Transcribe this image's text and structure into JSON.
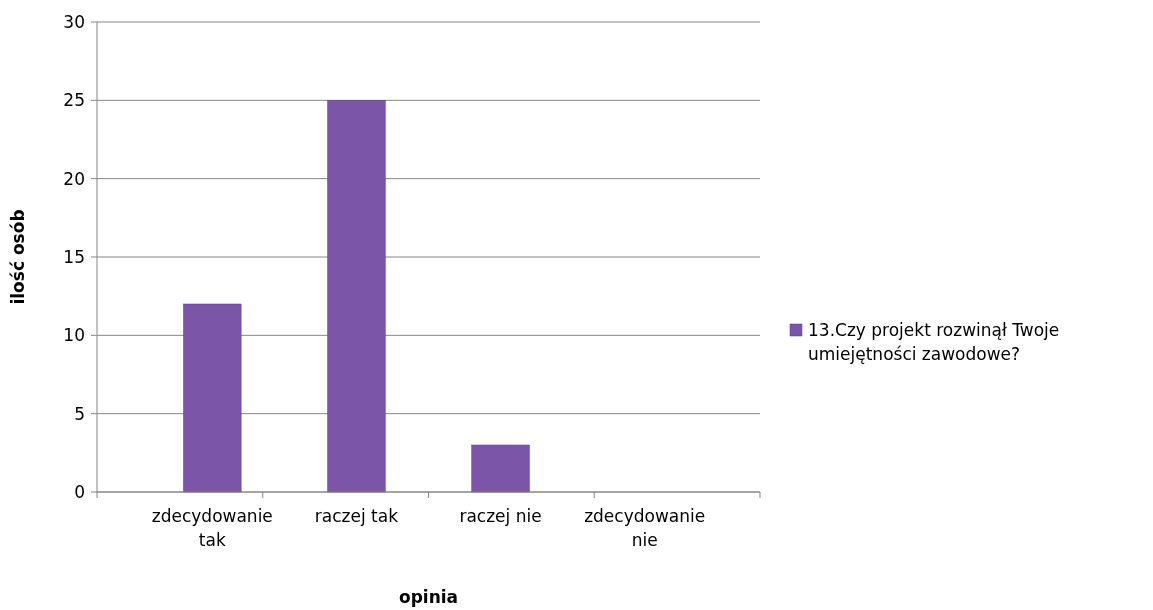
{
  "chart_data": {
    "type": "bar",
    "xlabel": "opinia",
    "ylabel": "ilość osób",
    "categories": [
      "zdecydowanie tak",
      "raczej tak",
      "raczej nie",
      "zdecydowanie nie"
    ],
    "series": [
      {
        "name": "13.Czy projekt rozwinął Twoje umiejętności zawodowe?",
        "color": "#7b55a8",
        "values": [
          12,
          25,
          3,
          0
        ]
      }
    ],
    "ylim": [
      0,
      30
    ],
    "yticks": [
      0,
      5,
      10,
      15,
      20,
      25,
      30
    ],
    "grid": "y",
    "legend": "right"
  }
}
